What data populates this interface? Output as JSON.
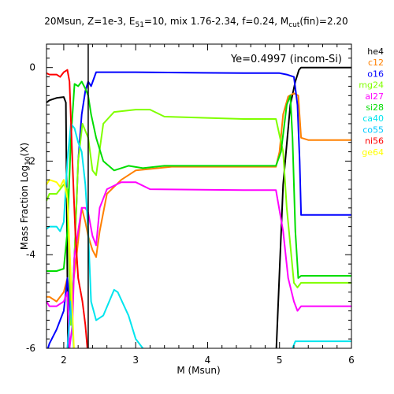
{
  "chart_data": {
    "type": "line",
    "title_parts": {
      "pre": "20Msun, Z=1e-3, E",
      "sub1": "51",
      "mid": "=10, mix 1.76-2.34, f=0.24, M",
      "sub2": "cut",
      "post": "(fin)=2.20"
    },
    "xlabel": "M (Msun)",
    "ylabel_parts": {
      "pre": "Mass Fraction Log",
      "sub": "10",
      "post": "(X)"
    },
    "annotation": "Ye=0.4997 (incom-Si)",
    "xlim": [
      1.76,
      6.0
    ],
    "ylim": [
      -6,
      0.5
    ],
    "xticks": [
      2,
      3,
      4,
      5,
      6
    ],
    "yticks": [
      0,
      -2,
      -4,
      -6
    ],
    "vline_x": 2.34,
    "series": [
      {
        "name": "he4",
        "color": "#000000",
        "points": [
          [
            1.76,
            -0.75
          ],
          [
            1.8,
            -0.7
          ],
          [
            1.9,
            -0.65
          ],
          [
            2.0,
            -0.63
          ],
          [
            2.03,
            -0.75
          ],
          [
            2.06,
            -6.2
          ],
          [
            2.34,
            -7
          ],
          [
            4.9,
            -7
          ],
          [
            4.95,
            -6.2
          ],
          [
            5.05,
            -2.5
          ],
          [
            5.15,
            -0.8
          ],
          [
            5.22,
            -0.3
          ],
          [
            5.27,
            -0.05
          ],
          [
            5.3,
            0
          ],
          [
            6.0,
            0
          ]
        ]
      },
      {
        "name": "c12",
        "color": "#ff8000",
        "points": [
          [
            1.76,
            -4.9
          ],
          [
            1.8,
            -4.9
          ],
          [
            1.9,
            -5.0
          ],
          [
            2.0,
            -4.8
          ],
          [
            2.05,
            -4.5
          ],
          [
            2.1,
            -5.0
          ],
          [
            2.18,
            -4.0
          ],
          [
            2.25,
            -3.0
          ],
          [
            2.3,
            -3.3
          ],
          [
            2.34,
            -3.6
          ],
          [
            2.4,
            -3.9
          ],
          [
            2.45,
            -4.05
          ],
          [
            2.5,
            -3.5
          ],
          [
            2.6,
            -2.7
          ],
          [
            2.8,
            -2.4
          ],
          [
            3.0,
            -2.2
          ],
          [
            3.5,
            -2.12
          ],
          [
            4.5,
            -2.12
          ],
          [
            4.95,
            -2.12
          ],
          [
            5.0,
            -1.8
          ],
          [
            5.05,
            -1.0
          ],
          [
            5.12,
            -0.62
          ],
          [
            5.2,
            -0.55
          ],
          [
            5.26,
            -0.6
          ],
          [
            5.3,
            -1.5
          ],
          [
            5.4,
            -1.55
          ],
          [
            6.0,
            -1.55
          ]
        ]
      },
      {
        "name": "o16",
        "color": "#0000ff",
        "points": [
          [
            1.76,
            -6.1
          ],
          [
            1.8,
            -5.9
          ],
          [
            1.9,
            -5.6
          ],
          [
            2.0,
            -5.2
          ],
          [
            2.05,
            -4.5
          ],
          [
            2.1,
            -5.5
          ],
          [
            2.15,
            -4.0
          ],
          [
            2.2,
            -2.0
          ],
          [
            2.25,
            -1.0
          ],
          [
            2.3,
            -0.5
          ],
          [
            2.34,
            -0.3
          ],
          [
            2.38,
            -0.4
          ],
          [
            2.45,
            -0.1
          ],
          [
            2.6,
            -0.1
          ],
          [
            3.0,
            -0.1
          ],
          [
            4.5,
            -0.12
          ],
          [
            5.0,
            -0.12
          ],
          [
            5.1,
            -0.15
          ],
          [
            5.2,
            -0.2
          ],
          [
            5.25,
            -0.8
          ],
          [
            5.28,
            -2.0
          ],
          [
            5.3,
            -3.15
          ],
          [
            6.0,
            -3.15
          ]
        ]
      },
      {
        "name": "mg24",
        "color": "#80ff00",
        "points": [
          [
            1.76,
            -2.85
          ],
          [
            1.8,
            -2.7
          ],
          [
            1.9,
            -2.7
          ],
          [
            2.0,
            -2.5
          ],
          [
            2.05,
            -2.6
          ],
          [
            2.1,
            -5.5
          ],
          [
            2.15,
            -4.0
          ],
          [
            2.2,
            -2.0
          ],
          [
            2.26,
            -1.2
          ],
          [
            2.34,
            -1.5
          ],
          [
            2.4,
            -2.2
          ],
          [
            2.45,
            -2.3
          ],
          [
            2.55,
            -1.2
          ],
          [
            2.7,
            -0.95
          ],
          [
            3.0,
            -0.9
          ],
          [
            3.2,
            -0.9
          ],
          [
            3.4,
            -1.05
          ],
          [
            4.5,
            -1.1
          ],
          [
            4.95,
            -1.1
          ],
          [
            5.05,
            -1.8
          ],
          [
            5.1,
            -3.0
          ],
          [
            5.2,
            -4.6
          ],
          [
            5.25,
            -4.7
          ],
          [
            5.3,
            -4.6
          ],
          [
            6.0,
            -4.6
          ]
        ]
      },
      {
        "name": "al27",
        "color": "#ff00ff",
        "points": [
          [
            1.76,
            -5.0
          ],
          [
            1.8,
            -5.1
          ],
          [
            1.9,
            -5.1
          ],
          [
            2.0,
            -5.0
          ],
          [
            2.05,
            -4.8
          ],
          [
            2.08,
            -6.0
          ],
          [
            2.12,
            -5.5
          ],
          [
            2.15,
            -4.0
          ],
          [
            2.25,
            -3.0
          ],
          [
            2.3,
            -3.0
          ],
          [
            2.34,
            -3.1
          ],
          [
            2.4,
            -3.6
          ],
          [
            2.45,
            -3.8
          ],
          [
            2.5,
            -3.0
          ],
          [
            2.6,
            -2.6
          ],
          [
            2.8,
            -2.45
          ],
          [
            3.0,
            -2.45
          ],
          [
            3.2,
            -2.6
          ],
          [
            4.5,
            -2.62
          ],
          [
            4.95,
            -2.62
          ],
          [
            5.05,
            -3.5
          ],
          [
            5.12,
            -4.5
          ],
          [
            5.2,
            -5.0
          ],
          [
            5.25,
            -5.2
          ],
          [
            5.3,
            -5.1
          ],
          [
            6.0,
            -5.1
          ]
        ]
      },
      {
        "name": "si28",
        "color": "#00dd00",
        "points": [
          [
            1.76,
            -4.35
          ],
          [
            1.9,
            -4.35
          ],
          [
            2.0,
            -4.3
          ],
          [
            2.05,
            -3.5
          ],
          [
            2.1,
            -1.5
          ],
          [
            2.15,
            -0.35
          ],
          [
            2.2,
            -0.4
          ],
          [
            2.25,
            -0.3
          ],
          [
            2.3,
            -0.45
          ],
          [
            2.34,
            -0.6
          ],
          [
            2.38,
            -1.0
          ],
          [
            2.45,
            -1.5
          ],
          [
            2.55,
            -2.0
          ],
          [
            2.7,
            -2.2
          ],
          [
            2.9,
            -2.1
          ],
          [
            3.1,
            -2.15
          ],
          [
            3.4,
            -2.1
          ],
          [
            4.5,
            -2.1
          ],
          [
            4.95,
            -2.1
          ],
          [
            5.02,
            -1.8
          ],
          [
            5.1,
            -0.8
          ],
          [
            5.15,
            -0.6
          ],
          [
            5.18,
            -1.5
          ],
          [
            5.22,
            -3.5
          ],
          [
            5.26,
            -4.5
          ],
          [
            5.3,
            -4.45
          ],
          [
            6.0,
            -4.45
          ]
        ]
      },
      {
        "name": "ca40",
        "color": "#00e5ee",
        "points": [
          [
            1.76,
            -3.45
          ],
          [
            1.8,
            -3.4
          ],
          [
            1.9,
            -3.4
          ],
          [
            1.95,
            -3.5
          ],
          [
            2.0,
            -3.3
          ],
          [
            2.05,
            -2.0
          ],
          [
            2.1,
            -1.2
          ],
          [
            2.15,
            -1.3
          ],
          [
            2.2,
            -1.6
          ],
          [
            2.25,
            -1.8
          ],
          [
            2.3,
            -2.5
          ],
          [
            2.34,
            -3.5
          ],
          [
            2.38,
            -5.0
          ],
          [
            2.45,
            -5.4
          ],
          [
            2.55,
            -5.3
          ],
          [
            2.7,
            -4.75
          ],
          [
            2.75,
            -4.8
          ],
          [
            2.9,
            -5.3
          ],
          [
            3.0,
            -5.8
          ],
          [
            3.1,
            -6.0
          ],
          [
            3.2,
            -6.3
          ],
          [
            4.5,
            -6.3
          ],
          [
            5.15,
            -6.3
          ],
          [
            5.18,
            -6.0
          ],
          [
            5.22,
            -5.85
          ],
          [
            6.0,
            -5.85
          ]
        ]
      },
      {
        "name": "co55",
        "color": "#00c8ff",
        "points": [
          [
            1.76,
            -6.3
          ],
          [
            2.0,
            -6.3
          ],
          [
            2.05,
            -6.0
          ],
          [
            2.1,
            -5.0
          ],
          [
            2.15,
            -6.3
          ],
          [
            6.0,
            -6.3
          ]
        ]
      },
      {
        "name": "ni56",
        "color": "#ff0000",
        "points": [
          [
            1.76,
            -0.12
          ],
          [
            1.8,
            -0.15
          ],
          [
            1.9,
            -0.15
          ],
          [
            1.95,
            -0.2
          ],
          [
            2.0,
            -0.1
          ],
          [
            2.05,
            -0.05
          ],
          [
            2.08,
            -0.3
          ],
          [
            2.12,
            -2.0
          ],
          [
            2.16,
            -3.5
          ],
          [
            2.2,
            -4.5
          ],
          [
            2.26,
            -5.0
          ],
          [
            2.3,
            -5.5
          ],
          [
            2.34,
            -6.2
          ],
          [
            2.36,
            -7
          ],
          [
            6.0,
            -7
          ]
        ]
      },
      {
        "name": "ge64",
        "color": "#ffff00",
        "points": [
          [
            1.76,
            -2.5
          ],
          [
            1.8,
            -2.4
          ],
          [
            1.9,
            -2.45
          ],
          [
            1.95,
            -2.55
          ],
          [
            2.0,
            -2.4
          ],
          [
            2.05,
            -2.8
          ],
          [
            2.1,
            -4.5
          ],
          [
            2.15,
            -6.3
          ],
          [
            6.0,
            -6.3
          ]
        ]
      }
    ]
  }
}
